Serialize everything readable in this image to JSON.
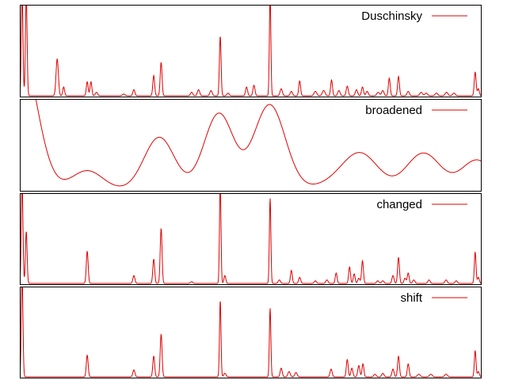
{
  "colors": {
    "series": "#e00000",
    "frame": "#000000",
    "background": "#ffffff"
  },
  "chart_data": [
    {
      "type": "line",
      "series": [
        {
          "name": "Duschinsky"
        }
      ],
      "xlim": [
        0,
        100
      ],
      "ylim": [
        0,
        1
      ],
      "grid": false,
      "legend": "top-right",
      "peaks": [
        [
          0.5,
          1.15,
          0.18
        ],
        [
          1.4,
          1.15,
          0.18
        ],
        [
          8.1,
          0.42,
          0.25
        ],
        [
          9.5,
          0.1,
          0.2
        ],
        [
          14.6,
          0.16,
          0.2
        ],
        [
          15.4,
          0.16,
          0.2
        ],
        [
          16.6,
          0.04,
          0.25
        ],
        [
          22.5,
          0.02,
          0.3
        ],
        [
          24.7,
          0.07,
          0.22
        ],
        [
          29.0,
          0.23,
          0.2
        ],
        [
          30.6,
          0.38,
          0.2
        ],
        [
          37.2,
          0.04,
          0.25
        ],
        [
          38.7,
          0.07,
          0.25
        ],
        [
          41.4,
          0.06,
          0.25
        ],
        [
          43.4,
          0.68,
          0.18
        ],
        [
          45.1,
          0.03,
          0.25
        ],
        [
          49.1,
          0.1,
          0.22
        ],
        [
          50.7,
          0.12,
          0.22
        ],
        [
          54.2,
          1.15,
          0.16
        ],
        [
          56.6,
          0.08,
          0.25
        ],
        [
          58.8,
          0.05,
          0.25
        ],
        [
          60.6,
          0.17,
          0.2
        ],
        [
          64.0,
          0.05,
          0.3
        ],
        [
          65.8,
          0.06,
          0.3
        ],
        [
          67.5,
          0.18,
          0.2
        ],
        [
          69.1,
          0.06,
          0.25
        ],
        [
          70.9,
          0.11,
          0.22
        ],
        [
          72.9,
          0.07,
          0.25
        ],
        [
          74.2,
          0.1,
          0.22
        ],
        [
          75.2,
          0.05,
          0.25
        ],
        [
          77.6,
          0.04,
          0.3
        ],
        [
          78.6,
          0.06,
          0.25
        ],
        [
          80.0,
          0.2,
          0.2
        ],
        [
          82.0,
          0.22,
          0.2
        ],
        [
          84.1,
          0.05,
          0.25
        ],
        [
          86.9,
          0.04,
          0.3
        ],
        [
          88.0,
          0.03,
          0.3
        ],
        [
          90.2,
          0.03,
          0.3
        ],
        [
          92.4,
          0.04,
          0.3
        ],
        [
          94.0,
          0.03,
          0.3
        ],
        [
          98.6,
          0.27,
          0.2
        ],
        [
          99.3,
          0.08,
          0.2
        ]
      ]
    },
    {
      "type": "line",
      "series": [
        {
          "name": "broadened"
        }
      ],
      "xlim": [
        0,
        100
      ],
      "ylim": [
        0,
        1
      ],
      "grid": false,
      "legend": "top-right",
      "broad": [
        [
          0.0,
          1.65,
          3.6
        ],
        [
          14.6,
          0.22,
          3.4
        ],
        [
          30.2,
          0.6,
          3.3
        ],
        [
          43.1,
          0.87,
          3.2
        ],
        [
          54.1,
          0.97,
          3.4
        ],
        [
          69.0,
          0.08,
          4.5
        ],
        [
          73.9,
          0.38,
          3.8
        ],
        [
          87.4,
          0.42,
          3.7
        ],
        [
          99.0,
          0.34,
          3.4
        ]
      ]
    },
    {
      "type": "line",
      "series": [
        {
          "name": "changed"
        }
      ],
      "xlim": [
        0,
        100
      ],
      "ylim": [
        0,
        1
      ],
      "grid": false,
      "legend": "top-right",
      "peaks": [
        [
          0.5,
          1.15,
          0.18
        ],
        [
          1.4,
          0.6,
          0.18
        ],
        [
          14.6,
          0.37,
          0.2
        ],
        [
          24.7,
          0.09,
          0.22
        ],
        [
          29.0,
          0.28,
          0.2
        ],
        [
          30.6,
          0.63,
          0.2
        ],
        [
          37.2,
          0.02,
          0.25
        ],
        [
          43.4,
          1.15,
          0.16
        ],
        [
          44.4,
          0.09,
          0.2
        ],
        [
          54.2,
          0.98,
          0.16
        ],
        [
          56.2,
          0.04,
          0.25
        ],
        [
          58.8,
          0.15,
          0.2
        ],
        [
          60.6,
          0.07,
          0.22
        ],
        [
          64.0,
          0.03,
          0.25
        ],
        [
          66.5,
          0.04,
          0.25
        ],
        [
          68.5,
          0.12,
          0.2
        ],
        [
          71.4,
          0.19,
          0.2
        ],
        [
          72.4,
          0.11,
          0.2
        ],
        [
          73.4,
          0.06,
          0.22
        ],
        [
          74.2,
          0.26,
          0.2
        ],
        [
          77.5,
          0.03,
          0.25
        ],
        [
          78.6,
          0.03,
          0.25
        ],
        [
          80.8,
          0.09,
          0.22
        ],
        [
          82.0,
          0.3,
          0.2
        ],
        [
          83.4,
          0.06,
          0.22
        ],
        [
          84.1,
          0.12,
          0.2
        ],
        [
          85.3,
          0.04,
          0.25
        ],
        [
          88.6,
          0.04,
          0.25
        ],
        [
          92.3,
          0.04,
          0.25
        ],
        [
          94.5,
          0.03,
          0.25
        ],
        [
          98.6,
          0.36,
          0.18
        ],
        [
          99.3,
          0.07,
          0.2
        ]
      ]
    },
    {
      "type": "line",
      "series": [
        {
          "name": "shift"
        }
      ],
      "xlim": [
        0,
        100
      ],
      "ylim": [
        0,
        1
      ],
      "grid": false,
      "legend": "top-right",
      "peaks": [
        [
          0.5,
          1.15,
          0.18
        ],
        [
          14.6,
          0.25,
          0.2
        ],
        [
          24.7,
          0.08,
          0.22
        ],
        [
          29.0,
          0.24,
          0.2
        ],
        [
          30.6,
          0.49,
          0.2
        ],
        [
          43.4,
          0.88,
          0.16
        ],
        [
          44.4,
          0.04,
          0.25
        ],
        [
          54.2,
          0.79,
          0.16
        ],
        [
          56.6,
          0.1,
          0.22
        ],
        [
          58.3,
          0.06,
          0.25
        ],
        [
          59.8,
          0.05,
          0.25
        ],
        [
          67.4,
          0.09,
          0.22
        ],
        [
          70.9,
          0.2,
          0.2
        ],
        [
          71.9,
          0.1,
          0.22
        ],
        [
          73.4,
          0.13,
          0.22
        ],
        [
          74.3,
          0.15,
          0.2
        ],
        [
          76.9,
          0.03,
          0.25
        ],
        [
          78.6,
          0.04,
          0.25
        ],
        [
          80.8,
          0.09,
          0.22
        ],
        [
          82.0,
          0.24,
          0.2
        ],
        [
          84.1,
          0.15,
          0.2
        ],
        [
          86.4,
          0.03,
          0.3
        ],
        [
          89.0,
          0.03,
          0.3
        ],
        [
          92.3,
          0.03,
          0.3
        ],
        [
          98.6,
          0.3,
          0.18
        ],
        [
          99.3,
          0.06,
          0.2
        ]
      ]
    }
  ]
}
